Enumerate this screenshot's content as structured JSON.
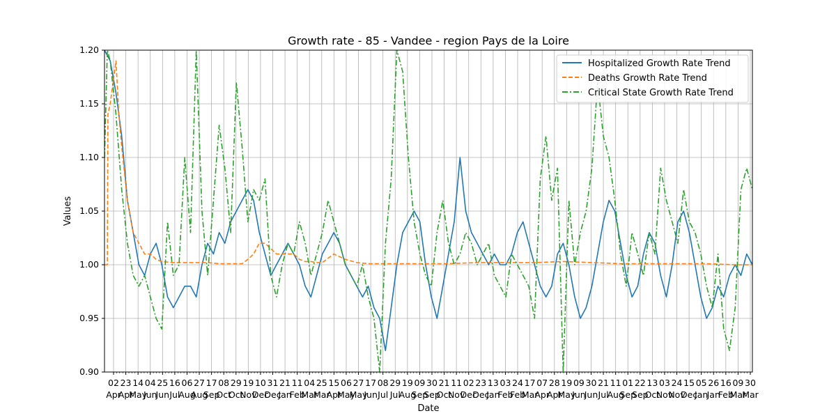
{
  "chart_data": {
    "type": "line",
    "title": "Growth rate - 85 - Vandee - region Pays de la Loire",
    "xlabel": "Date",
    "ylabel": "Values",
    "ylim": [
      0.9,
      1.2
    ],
    "yticks": [
      "0.90",
      "0.95",
      "1.00",
      "1.05",
      "1.10",
      "1.15",
      "1.20"
    ],
    "grid": true,
    "legend_position": "top-right",
    "xtick_days": [
      "02",
      "23",
      "14",
      "04",
      "25",
      "16",
      "06",
      "27",
      "17",
      "08",
      "29",
      "19",
      "10",
      "31",
      "21",
      "11",
      "04",
      "25",
      "15",
      "06",
      "27",
      "17",
      "08",
      "29",
      "19",
      "09",
      "30",
      "21",
      "11",
      "02",
      "23",
      "13",
      "03",
      "24",
      "17",
      "07",
      "28",
      "19",
      "09",
      "30",
      "21",
      "11",
      "01",
      "22",
      "13",
      "03",
      "24",
      "15",
      "05",
      "26",
      "16",
      "09",
      "30"
    ],
    "xtick_months": [
      "Apr",
      "Apr",
      "May",
      "Jun",
      "Jun",
      "Jul",
      "Aug",
      "Aug",
      "Sep",
      "Oct",
      "Oct",
      "Nov",
      "Dec",
      "Dec",
      "Jan",
      "Feb",
      "Mar",
      "Mar",
      "Apr",
      "May",
      "May",
      "Jun",
      "Jul",
      "Jul",
      "Aug",
      "Sep",
      "Sep",
      "Oct",
      "Nov",
      "Dec",
      "Dec",
      "Jan",
      "Feb",
      "Feb",
      "Mar",
      "Apr",
      "Apr",
      "May",
      "Jun",
      "Jun",
      "Jul",
      "Aug",
      "Sep",
      "Sep",
      "Oct",
      "Nov",
      "Nov",
      "Dec",
      "Jan",
      "Jan",
      "Feb",
      "Mar",
      "Mar"
    ],
    "series": [
      {
        "name": "Hospitalized Growth Rate Trend",
        "color": "#1f77b4",
        "style": "solid",
        "points": [
          [
            0,
            1.2
          ],
          [
            1,
            1.19
          ],
          [
            2,
            1.16
          ],
          [
            3,
            1.12
          ],
          [
            4,
            1.06
          ],
          [
            5,
            1.03
          ],
          [
            6,
            1.0
          ],
          [
            7,
            0.99
          ],
          [
            8,
            1.01
          ],
          [
            9,
            1.02
          ],
          [
            10,
            1.0
          ],
          [
            11,
            0.97
          ],
          [
            12,
            0.96
          ],
          [
            13,
            0.97
          ],
          [
            14,
            0.98
          ],
          [
            15,
            0.98
          ],
          [
            16,
            0.97
          ],
          [
            17,
            1.0
          ],
          [
            18,
            1.02
          ],
          [
            19,
            1.01
          ],
          [
            20,
            1.03
          ],
          [
            21,
            1.02
          ],
          [
            22,
            1.04
          ],
          [
            23,
            1.05
          ],
          [
            24,
            1.06
          ],
          [
            25,
            1.07
          ],
          [
            26,
            1.06
          ],
          [
            27,
            1.03
          ],
          [
            28,
            1.01
          ],
          [
            29,
            0.99
          ],
          [
            30,
            1.0
          ],
          [
            31,
            1.01
          ],
          [
            32,
            1.02
          ],
          [
            33,
            1.01
          ],
          [
            34,
            1.0
          ],
          [
            35,
            0.98
          ],
          [
            36,
            0.97
          ],
          [
            37,
            0.99
          ],
          [
            38,
            1.01
          ],
          [
            39,
            1.02
          ],
          [
            40,
            1.03
          ],
          [
            41,
            1.02
          ],
          [
            42,
            1.0
          ],
          [
            43,
            0.99
          ],
          [
            44,
            0.98
          ],
          [
            45,
            0.97
          ],
          [
            46,
            0.98
          ],
          [
            47,
            0.96
          ],
          [
            48,
            0.95
          ],
          [
            49,
            0.92
          ],
          [
            50,
            0.96
          ],
          [
            51,
            1.0
          ],
          [
            52,
            1.03
          ],
          [
            53,
            1.04
          ],
          [
            54,
            1.05
          ],
          [
            55,
            1.04
          ],
          [
            56,
            1.0
          ],
          [
            57,
            0.97
          ],
          [
            58,
            0.95
          ],
          [
            59,
            0.98
          ],
          [
            60,
            1.01
          ],
          [
            61,
            1.04
          ],
          [
            62,
            1.1
          ],
          [
            63,
            1.05
          ],
          [
            64,
            1.03
          ],
          [
            65,
            1.02
          ],
          [
            66,
            1.01
          ],
          [
            67,
            1.0
          ],
          [
            68,
            1.01
          ],
          [
            69,
            1.0
          ],
          [
            70,
            1.0
          ],
          [
            71,
            1.01
          ],
          [
            72,
            1.03
          ],
          [
            73,
            1.04
          ],
          [
            74,
            1.02
          ],
          [
            75,
            1.0
          ],
          [
            76,
            0.98
          ],
          [
            77,
            0.97
          ],
          [
            78,
            0.98
          ],
          [
            79,
            1.01
          ],
          [
            80,
            1.02
          ],
          [
            81,
            1.0
          ],
          [
            82,
            0.97
          ],
          [
            83,
            0.95
          ],
          [
            84,
            0.96
          ],
          [
            85,
            0.98
          ],
          [
            86,
            1.01
          ],
          [
            87,
            1.04
          ],
          [
            88,
            1.06
          ],
          [
            89,
            1.05
          ],
          [
            90,
            1.02
          ],
          [
            91,
            0.99
          ],
          [
            92,
            0.97
          ],
          [
            93,
            0.98
          ],
          [
            94,
            1.01
          ],
          [
            95,
            1.03
          ],
          [
            96,
            1.02
          ],
          [
            97,
            0.99
          ],
          [
            98,
            0.97
          ],
          [
            99,
            1.0
          ],
          [
            100,
            1.04
          ],
          [
            101,
            1.05
          ],
          [
            102,
            1.03
          ],
          [
            103,
            1.0
          ],
          [
            104,
            0.97
          ],
          [
            105,
            0.95
          ],
          [
            106,
            0.96
          ],
          [
            107,
            0.98
          ],
          [
            108,
            0.97
          ],
          [
            109,
            0.99
          ],
          [
            110,
            1.0
          ],
          [
            111,
            0.99
          ],
          [
            112,
            1.01
          ],
          [
            113,
            1.0
          ]
        ]
      },
      {
        "name": "Deaths Growth Rate Trend",
        "color": "#ff7f0e",
        "style": "dashed",
        "points": [
          [
            0,
            1.0
          ],
          [
            0.5,
            1.0
          ],
          [
            0.6,
            1.14
          ],
          [
            1,
            1.15
          ],
          [
            1.5,
            1.17
          ],
          [
            2,
            1.19
          ],
          [
            2.5,
            1.14
          ],
          [
            3,
            1.11
          ],
          [
            4,
            1.06
          ],
          [
            5,
            1.03
          ],
          [
            6,
            1.02
          ],
          [
            7,
            1.01
          ],
          [
            8,
            1.01
          ],
          [
            9,
            1.005
          ],
          [
            10,
            1.003
          ],
          [
            12,
            1.002
          ],
          [
            14,
            1.002
          ],
          [
            16,
            1.002
          ],
          [
            18,
            1.002
          ],
          [
            20,
            1.001
          ],
          [
            22,
            1.001
          ],
          [
            24,
            1.001
          ],
          [
            25,
            1.005
          ],
          [
            26,
            1.01
          ],
          [
            27,
            1.02
          ],
          [
            28,
            1.02
          ],
          [
            29,
            1.015
          ],
          [
            30,
            1.01
          ],
          [
            31,
            1.01
          ],
          [
            32,
            1.01
          ],
          [
            33,
            1.01
          ],
          [
            34,
            1.005
          ],
          [
            35,
            1.003
          ],
          [
            36,
            1.003
          ],
          [
            37,
            1.002
          ],
          [
            38,
            1.002
          ],
          [
            40,
            1.01
          ],
          [
            42,
            1.005
          ],
          [
            44,
            1.002
          ],
          [
            46,
            1.001
          ],
          [
            50,
            1.001
          ],
          [
            55,
            1.001
          ],
          [
            60,
            1.001
          ],
          [
            65,
            1.002
          ],
          [
            70,
            1.002
          ],
          [
            75,
            1.002
          ],
          [
            80,
            1.003
          ],
          [
            85,
            1.002
          ],
          [
            90,
            1.001
          ],
          [
            95,
            1.001
          ],
          [
            100,
            1.001
          ],
          [
            105,
            1.001
          ],
          [
            110,
            1.0
          ],
          [
            113,
            1.0
          ]
        ]
      },
      {
        "name": "Critical State Growth Rate Trend",
        "color": "#2ca02c",
        "style": "dashdot",
        "points": [
          [
            0,
            1.1
          ],
          [
            0.5,
            1.2
          ],
          [
            1,
            1.19
          ],
          [
            2,
            1.14
          ],
          [
            3,
            1.07
          ],
          [
            4,
            1.02
          ],
          [
            5,
            0.99
          ],
          [
            6,
            0.98
          ],
          [
            7,
            0.99
          ],
          [
            8,
            0.97
          ],
          [
            9,
            0.95
          ],
          [
            10,
            0.94
          ],
          [
            11,
            1.04
          ],
          [
            12,
            0.99
          ],
          [
            13,
            1.0
          ],
          [
            14,
            1.1
          ],
          [
            15,
            1.03
          ],
          [
            16,
            1.2
          ],
          [
            17,
            1.05
          ],
          [
            18,
            0.99
          ],
          [
            19,
            1.06
          ],
          [
            20,
            1.13
          ],
          [
            21,
            1.09
          ],
          [
            22,
            1.03
          ],
          [
            23,
            1.17
          ],
          [
            24,
            1.11
          ],
          [
            25,
            1.04
          ],
          [
            26,
            1.07
          ],
          [
            27,
            1.06
          ],
          [
            28,
            1.08
          ],
          [
            29,
            0.99
          ],
          [
            30,
            0.97
          ],
          [
            31,
            1.0
          ],
          [
            32,
            1.02
          ],
          [
            33,
            1.01
          ],
          [
            34,
            1.04
          ],
          [
            35,
            1.02
          ],
          [
            36,
            0.99
          ],
          [
            37,
            1.01
          ],
          [
            38,
            1.03
          ],
          [
            39,
            1.06
          ],
          [
            40,
            1.04
          ],
          [
            41,
            1.02
          ],
          [
            42,
            1.0
          ],
          [
            43,
            0.99
          ],
          [
            44,
            0.98
          ],
          [
            45,
            1.0
          ],
          [
            46,
            0.97
          ],
          [
            47,
            0.95
          ],
          [
            48,
            0.9
          ],
          [
            49,
            1.02
          ],
          [
            50,
            1.08
          ],
          [
            51,
            1.2
          ],
          [
            52,
            1.18
          ],
          [
            53,
            1.1
          ],
          [
            54,
            1.04
          ],
          [
            55,
            1.01
          ],
          [
            56,
            0.99
          ],
          [
            57,
            0.98
          ],
          [
            58,
            1.03
          ],
          [
            59,
            1.06
          ],
          [
            60,
            1.02
          ],
          [
            61,
            1.0
          ],
          [
            62,
            1.01
          ],
          [
            63,
            1.03
          ],
          [
            64,
            1.02
          ],
          [
            65,
            1.0
          ],
          [
            66,
            1.01
          ],
          [
            67,
            1.02
          ],
          [
            68,
            0.99
          ],
          [
            69,
            0.98
          ],
          [
            70,
            0.97
          ],
          [
            71,
            1.01
          ],
          [
            72,
            1.0
          ],
          [
            73,
            0.99
          ],
          [
            74,
            0.98
          ],
          [
            75,
            0.95
          ],
          [
            76,
            1.08
          ],
          [
            77,
            1.12
          ],
          [
            78,
            1.06
          ],
          [
            79,
            1.09
          ],
          [
            80,
            0.9
          ],
          [
            81,
            1.06
          ],
          [
            82,
            1.0
          ],
          [
            83,
            1.03
          ],
          [
            84,
            1.05
          ],
          [
            85,
            1.09
          ],
          [
            86,
            1.17
          ],
          [
            87,
            1.12
          ],
          [
            88,
            1.1
          ],
          [
            89,
            1.06
          ],
          [
            90,
            1.01
          ],
          [
            91,
            0.98
          ],
          [
            92,
            1.03
          ],
          [
            93,
            1.01
          ],
          [
            94,
            0.99
          ],
          [
            95,
            1.03
          ],
          [
            96,
            1.01
          ],
          [
            97,
            1.09
          ],
          [
            98,
            1.06
          ],
          [
            99,
            1.04
          ],
          [
            100,
            1.02
          ],
          [
            101,
            1.07
          ],
          [
            102,
            1.04
          ],
          [
            103,
            1.03
          ],
          [
            104,
            1.01
          ],
          [
            105,
            0.98
          ],
          [
            106,
            0.96
          ],
          [
            107,
            1.01
          ],
          [
            108,
            0.94
          ],
          [
            109,
            0.92
          ],
          [
            110,
            0.96
          ],
          [
            111,
            1.07
          ],
          [
            112,
            1.09
          ],
          [
            113,
            1.07
          ]
        ]
      }
    ]
  }
}
